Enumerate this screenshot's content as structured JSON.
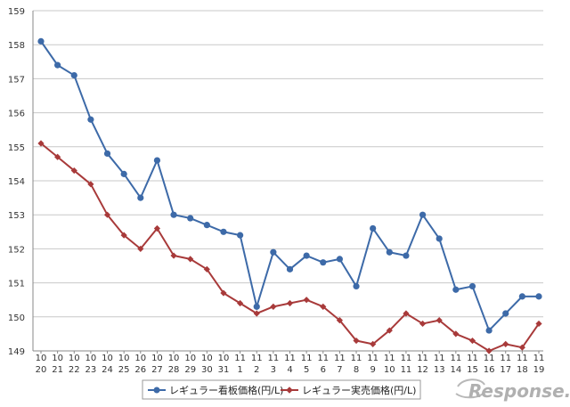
{
  "chart_data": {
    "type": "line",
    "categories": [
      [
        "10",
        "20"
      ],
      [
        "10",
        "21"
      ],
      [
        "10",
        "22"
      ],
      [
        "10",
        "23"
      ],
      [
        "10",
        "24"
      ],
      [
        "10",
        "25"
      ],
      [
        "10",
        "26"
      ],
      [
        "10",
        "27"
      ],
      [
        "10",
        "28"
      ],
      [
        "10",
        "29"
      ],
      [
        "10",
        "30"
      ],
      [
        "10",
        "31"
      ],
      [
        "11",
        "1"
      ],
      [
        "11",
        "2"
      ],
      [
        "11",
        "3"
      ],
      [
        "11",
        "4"
      ],
      [
        "11",
        "5"
      ],
      [
        "11",
        "6"
      ],
      [
        "11",
        "7"
      ],
      [
        "11",
        "8"
      ],
      [
        "11",
        "9"
      ],
      [
        "11",
        "10"
      ],
      [
        "11",
        "11"
      ],
      [
        "11",
        "12"
      ],
      [
        "11",
        "13"
      ],
      [
        "11",
        "14"
      ],
      [
        "11",
        "15"
      ],
      [
        "11",
        "16"
      ],
      [
        "11",
        "17"
      ],
      [
        "11",
        "18"
      ],
      [
        "11",
        "19"
      ]
    ],
    "ylim": [
      149,
      159
    ],
    "yticks": [
      149,
      150,
      151,
      152,
      153,
      154,
      155,
      156,
      157,
      158,
      159
    ],
    "grid": true,
    "legend_position": "bottom",
    "series": [
      {
        "name": "レギュラー看板価格(円/L)",
        "color": "#3d6aa8",
        "marker": "circle",
        "values": [
          158.1,
          157.4,
          157.1,
          155.8,
          154.8,
          154.2,
          153.5,
          154.6,
          153.0,
          152.9,
          152.7,
          152.5,
          152.4,
          150.3,
          151.9,
          151.4,
          151.8,
          151.6,
          151.7,
          150.9,
          152.6,
          151.9,
          151.8,
          153.0,
          152.3,
          150.8,
          150.9,
          149.6,
          150.1,
          150.6,
          150.6
        ]
      },
      {
        "name": "レギュラー実売価格(円/L)",
        "color": "#a83a3a",
        "marker": "diamond",
        "values": [
          155.1,
          154.7,
          154.3,
          153.9,
          153.0,
          152.4,
          152.0,
          152.6,
          151.8,
          151.7,
          151.4,
          150.7,
          150.4,
          150.1,
          150.3,
          150.4,
          150.5,
          150.3,
          149.9,
          149.3,
          149.2,
          149.6,
          150.1,
          149.8,
          149.9,
          149.5,
          149.3,
          149.0,
          149.2,
          149.1,
          149.8
        ]
      }
    ]
  },
  "watermark": {
    "text": "Response.",
    "color": "#aaaaaa"
  }
}
